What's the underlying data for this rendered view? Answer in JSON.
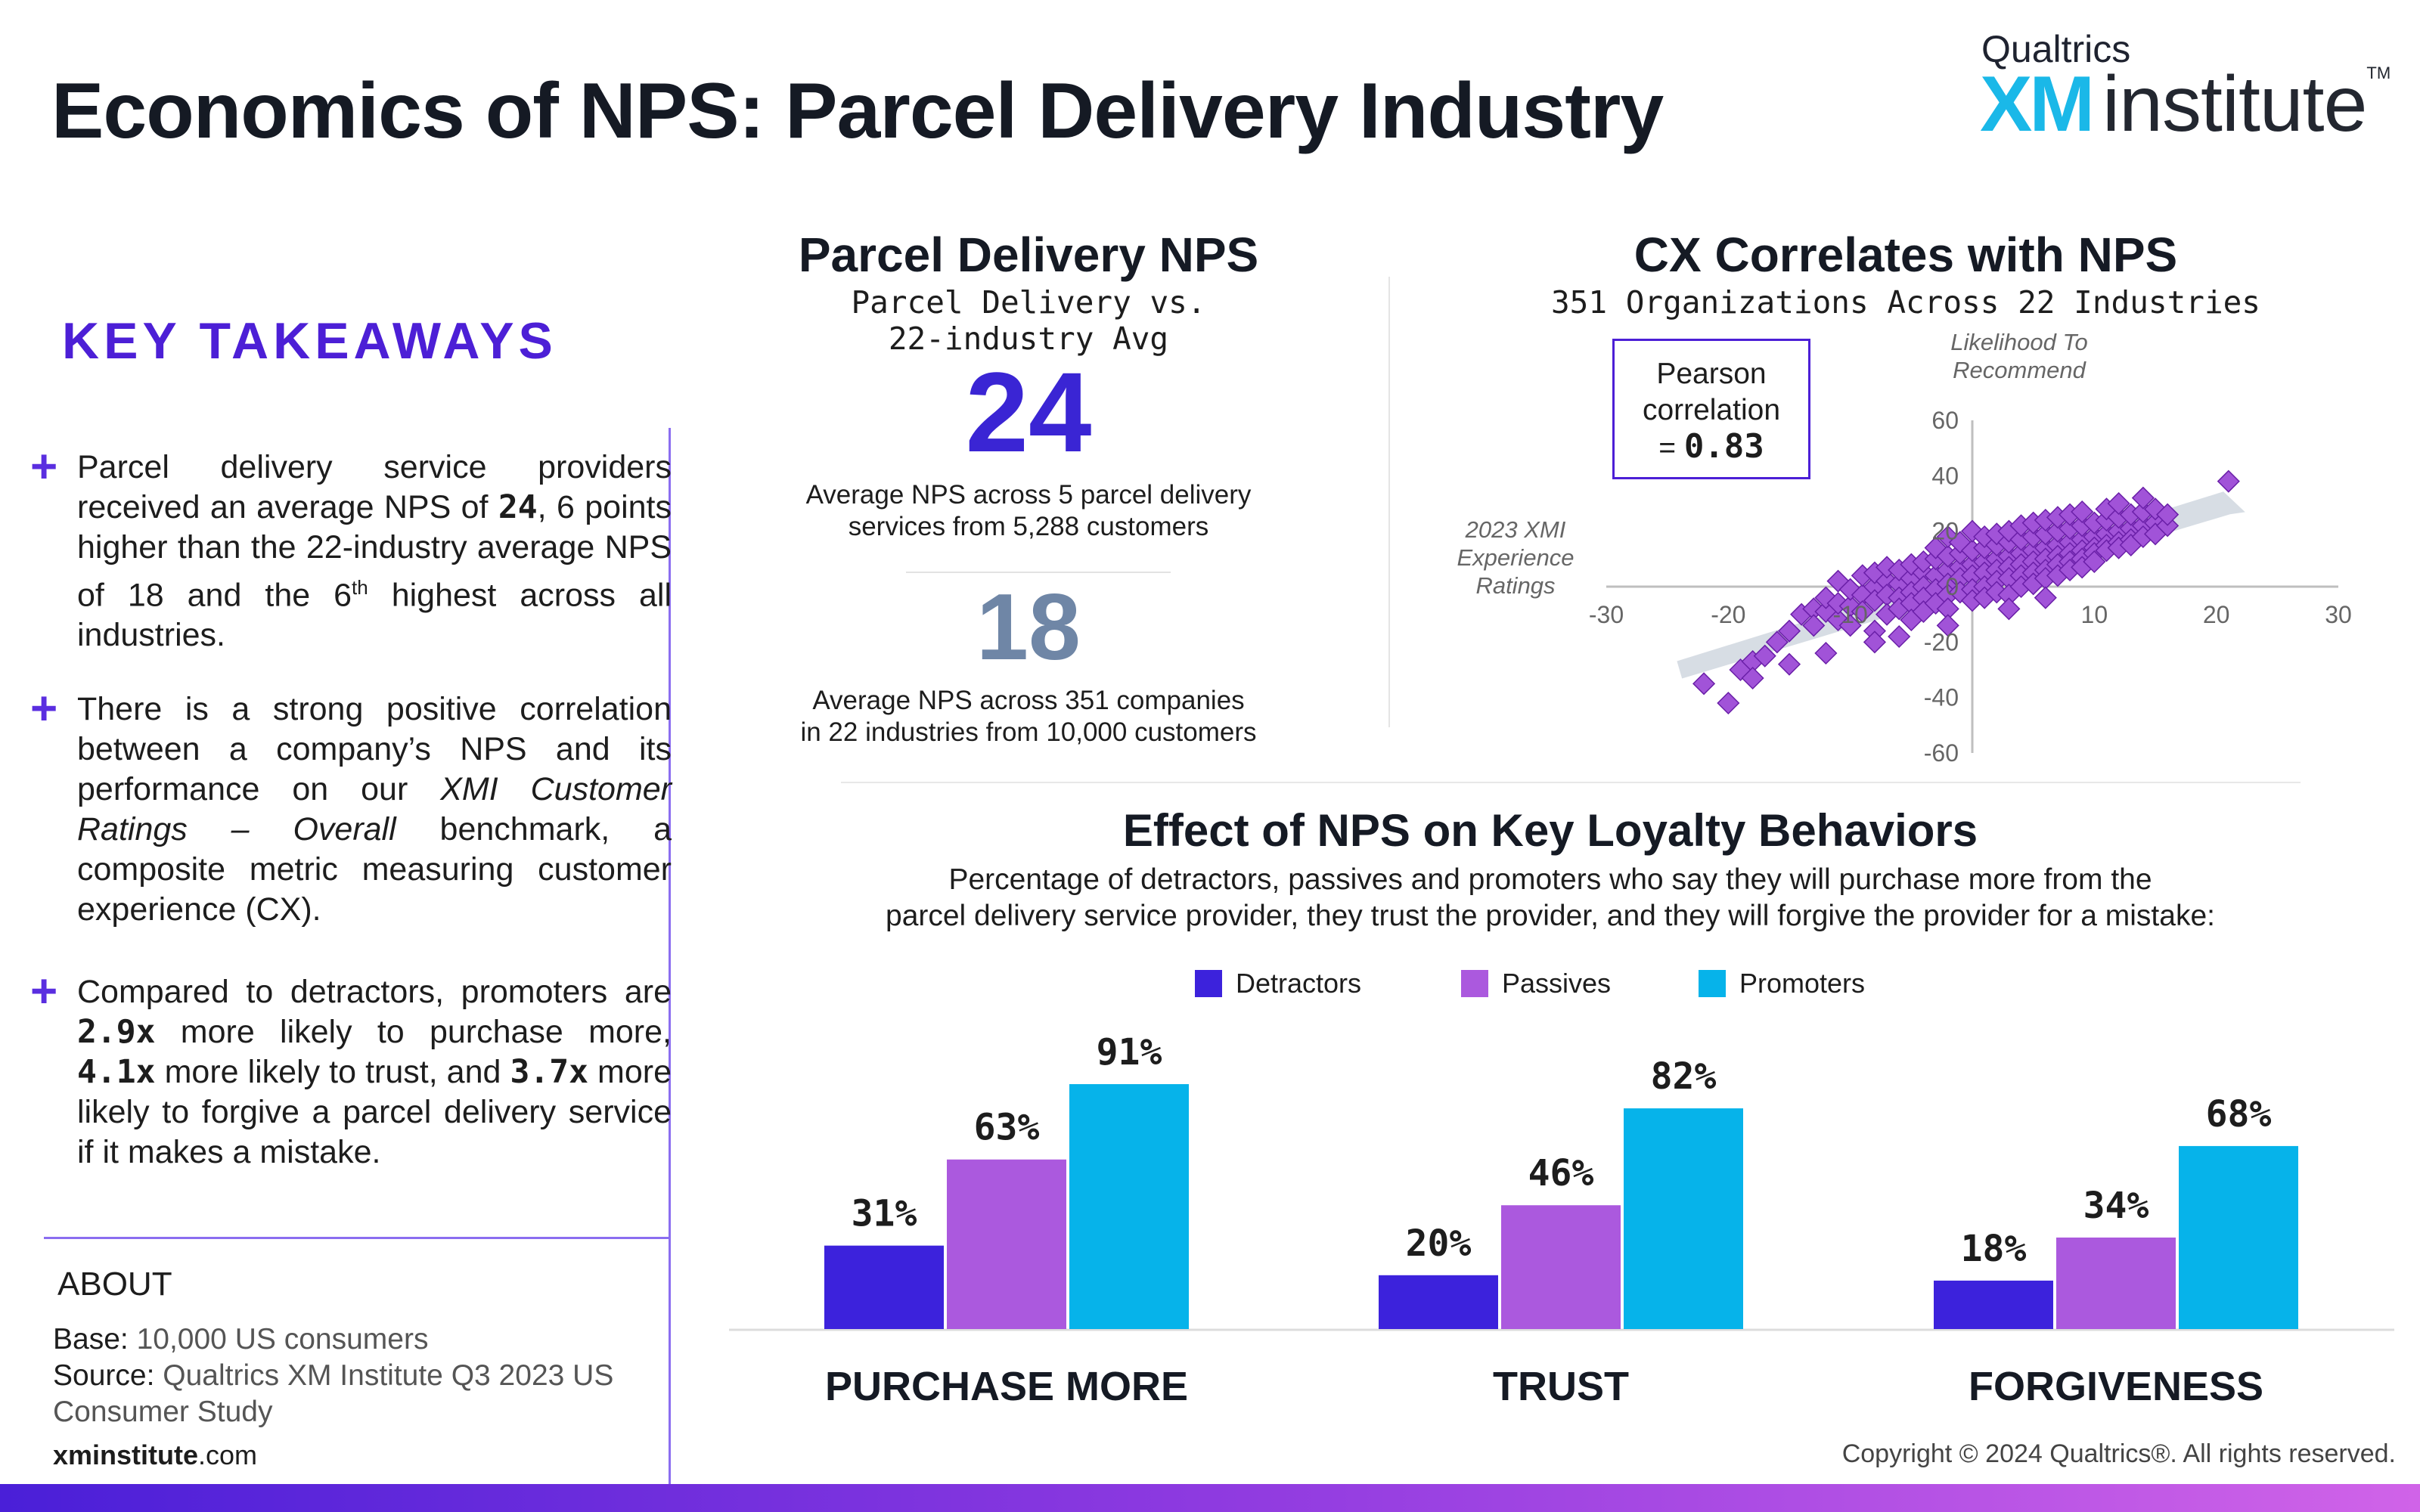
{
  "header": {
    "title": "Economics of NPS: Parcel Delivery Industry",
    "brand_top": "Qualtrics",
    "brand_xm": "XM",
    "brand_institute": "institute",
    "brand_tm": "TM"
  },
  "takeaways": {
    "title": "KEY TAKEAWAYS",
    "plus": "+",
    "items": [
      {
        "pre": "Parcel delivery service providers received an average NPS of ",
        "b1": "24",
        "mid": ", 6 points higher than the 22-industry average NPS of 18 and the 6",
        "sup": "th",
        "post": " highest across all industries."
      },
      {
        "pre": "There is a strong positive correlation between a company’s NPS and its performance on our ",
        "italic": "XMI Customer Ratings – Overall",
        "post": " benchmark, a composite metric measuring customer experience (CX)."
      },
      {
        "pre": "Compared to detractors, promoters are ",
        "b1": "2.9x",
        "mid1": " more likely to purchase more, ",
        "b2": "4.1x",
        "mid2": " more likely to trust, and ",
        "b3": "3.7x",
        "post": " more likely to forgive a parcel delivery service if it makes a mistake."
      }
    ]
  },
  "about": {
    "title": "ABOUT",
    "base_label": "Base:",
    "base_value": "10,000 US consumers",
    "source_label": "Source:",
    "source_value": "Qualtrics XM Institute Q3 2023 US Consumer Study",
    "site_bold": "xminstitute",
    "site_rest": ".com"
  },
  "copyright": "Copyright © 2024 Qualtrics®. All rights reserved.",
  "nps_panel": {
    "title": "Parcel Delivery NPS",
    "subtitle_line1": "Parcel Delivery vs.",
    "subtitle_line2": "22-industry Avg",
    "big_value": "24",
    "big_desc_line1": "Average NPS across 5 parcel delivery",
    "big_desc_line2": "services from 5,288 customers",
    "avg_value": "18",
    "avg_desc_line1": "Average NPS across 351 companies",
    "avg_desc_line2": "in 22 industries from 10,000 customers"
  },
  "cx_panel": {
    "title": "CX Correlates with NPS",
    "subtitle": "351 Organizations Across 22 Industries",
    "pearson_line1": "Pearson",
    "pearson_line2": "correlation",
    "pearson_eq": "=",
    "pearson_value": "0.83",
    "y_axis_label_line1": "Likelihood To",
    "y_axis_label_line2": "Recommend",
    "x_axis_label_line1": "2023 XMI",
    "x_axis_label_line2": "Experience",
    "x_axis_label_line3": "Ratings"
  },
  "loyalty_panel": {
    "title": "Effect of NPS on Key Loyalty Behaviors",
    "subtitle_line1": "Percentage of detractors, passives and promoters who say they will purchase more from the",
    "subtitle_line2": "parcel delivery service provider, they trust the provider, and they will forgive the provider for a mistake:"
  },
  "chart_data": [
    {
      "type": "scatter",
      "xlim": [
        -30,
        30
      ],
      "ylim": [
        -60,
        60
      ],
      "x_ticks": [
        "-30",
        "-20",
        "-10",
        "10",
        "20",
        "30"
      ],
      "y_ticks": [
        "60",
        "40",
        "20",
        "0",
        "-20",
        "-40",
        "-60"
      ],
      "grid": false,
      "trendline": [
        [
          -24,
          -30
        ],
        [
          21,
          28
        ]
      ],
      "points": [
        [
          -22,
          -35
        ],
        [
          -20,
          -42
        ],
        [
          -19,
          -30
        ],
        [
          -18,
          -27
        ],
        [
          -18,
          -33
        ],
        [
          -17,
          -25
        ],
        [
          -16,
          -20
        ],
        [
          -15,
          -28
        ],
        [
          -14,
          -10
        ],
        [
          -13,
          -8
        ],
        [
          -13,
          -14
        ],
        [
          -12,
          -9
        ],
        [
          -12,
          -4
        ],
        [
          -11,
          -12
        ],
        [
          -11,
          -6
        ],
        [
          -11,
          2
        ],
        [
          -10,
          -7
        ],
        [
          -10,
          -1
        ],
        [
          -10,
          -14
        ],
        [
          -9,
          -3
        ],
        [
          -9,
          4
        ],
        [
          -9,
          -9
        ],
        [
          -8,
          0
        ],
        [
          -8,
          -5
        ],
        [
          -8,
          5
        ],
        [
          -8,
          -16
        ],
        [
          -7,
          2
        ],
        [
          -7,
          -3
        ],
        [
          -7,
          7
        ],
        [
          -7,
          -10
        ],
        [
          -6,
          1
        ],
        [
          -6,
          -4
        ],
        [
          -6,
          6
        ],
        [
          -6,
          -8
        ],
        [
          -5,
          3
        ],
        [
          -5,
          -2
        ],
        [
          -5,
          8
        ],
        [
          -5,
          -6
        ],
        [
          -5,
          -12
        ],
        [
          -4,
          5
        ],
        [
          -4,
          0
        ],
        [
          -4,
          9
        ],
        [
          -4,
          -4
        ],
        [
          -4,
          -9
        ],
        [
          -3,
          4
        ],
        [
          -3,
          -1
        ],
        [
          -3,
          10
        ],
        [
          -3,
          -6
        ],
        [
          -3,
          14
        ],
        [
          -2,
          6
        ],
        [
          -2,
          1
        ],
        [
          -2,
          11
        ],
        [
          -2,
          -3
        ],
        [
          -2,
          -8
        ],
        [
          -2,
          18
        ],
        [
          -1,
          7
        ],
        [
          -1,
          3
        ],
        [
          -1,
          12
        ],
        [
          -1,
          -2
        ],
        [
          -1,
          16
        ],
        [
          0,
          8
        ],
        [
          0,
          4
        ],
        [
          0,
          13
        ],
        [
          0,
          -1
        ],
        [
          0,
          -5
        ],
        [
          0,
          20
        ],
        [
          1,
          9
        ],
        [
          1,
          5
        ],
        [
          1,
          14
        ],
        [
          1,
          0
        ],
        [
          1,
          18
        ],
        [
          1,
          -4
        ],
        [
          2,
          10
        ],
        [
          2,
          6
        ],
        [
          2,
          15
        ],
        [
          2,
          2
        ],
        [
          2,
          -2
        ],
        [
          2,
          19
        ],
        [
          3,
          11
        ],
        [
          3,
          7
        ],
        [
          3,
          16
        ],
        [
          3,
          3
        ],
        [
          3,
          20
        ],
        [
          3,
          -3
        ],
        [
          4,
          12
        ],
        [
          4,
          8
        ],
        [
          4,
          17
        ],
        [
          4,
          4
        ],
        [
          4,
          22
        ],
        [
          4,
          0
        ],
        [
          5,
          13
        ],
        [
          5,
          9
        ],
        [
          5,
          18
        ],
        [
          5,
          5
        ],
        [
          5,
          23
        ],
        [
          5,
          1
        ],
        [
          6,
          14
        ],
        [
          6,
          10
        ],
        [
          6,
          19
        ],
        [
          6,
          6
        ],
        [
          6,
          24
        ],
        [
          6,
          3
        ],
        [
          7,
          15
        ],
        [
          7,
          11
        ],
        [
          7,
          20
        ],
        [
          7,
          8
        ],
        [
          7,
          25
        ],
        [
          7,
          4
        ],
        [
          8,
          16
        ],
        [
          8,
          12
        ],
        [
          8,
          21
        ],
        [
          8,
          9
        ],
        [
          8,
          26
        ],
        [
          8,
          6
        ],
        [
          9,
          17
        ],
        [
          9,
          13
        ],
        [
          9,
          22
        ],
        [
          9,
          10
        ],
        [
          9,
          27
        ],
        [
          9,
          7
        ],
        [
          10,
          18
        ],
        [
          10,
          14
        ],
        [
          10,
          23
        ],
        [
          10,
          12
        ],
        [
          10,
          9
        ],
        [
          11,
          19
        ],
        [
          11,
          15
        ],
        [
          11,
          24
        ],
        [
          11,
          13
        ],
        [
          11,
          28
        ],
        [
          12,
          20
        ],
        [
          12,
          16
        ],
        [
          12,
          25
        ],
        [
          12,
          14
        ],
        [
          12,
          30
        ],
        [
          13,
          21
        ],
        [
          13,
          17
        ],
        [
          13,
          26
        ],
        [
          13,
          15
        ],
        [
          14,
          22
        ],
        [
          14,
          18
        ],
        [
          14,
          27
        ],
        [
          14,
          32
        ],
        [
          15,
          23
        ],
        [
          15,
          19
        ],
        [
          15,
          28
        ],
        [
          16,
          22
        ],
        [
          16,
          26
        ],
        [
          -12,
          -24
        ],
        [
          -8,
          -20
        ],
        [
          -2,
          -14
        ],
        [
          3,
          -8
        ],
        [
          6,
          -4
        ],
        [
          -15,
          -16
        ],
        [
          -6,
          -18
        ],
        [
          21,
          38
        ]
      ]
    },
    {
      "type": "bar",
      "categories": [
        "PURCHASE MORE",
        "TRUST",
        "FORGIVENESS"
      ],
      "ylim": [
        0,
        100
      ],
      "legend_position": "top",
      "series": [
        {
          "name": "Detractors",
          "color": "#3c22dc",
          "values": [
            31,
            20,
            18
          ],
          "labels": [
            "31%",
            "20%",
            "18%"
          ]
        },
        {
          "name": "Passives",
          "color": "#ab59de",
          "values": [
            63,
            46,
            34
          ],
          "labels": [
            "63%",
            "46%",
            "34%"
          ]
        },
        {
          "name": "Promoters",
          "color": "#06b3ea",
          "values": [
            91,
            82,
            68
          ],
          "labels": [
            "91%",
            "82%",
            "68%"
          ]
        }
      ]
    }
  ]
}
